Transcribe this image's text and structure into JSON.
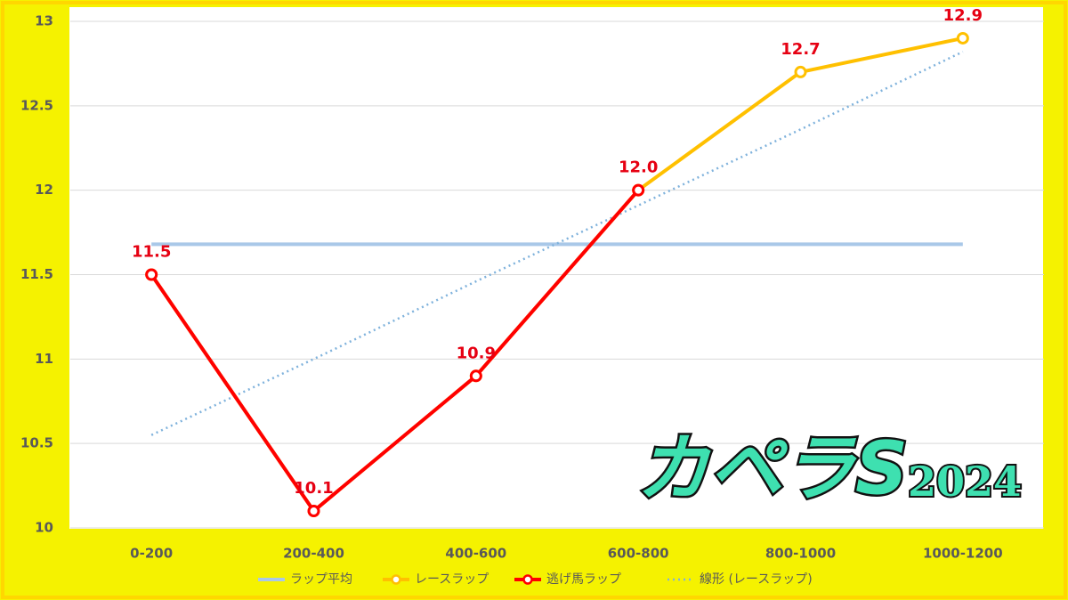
{
  "chart_data": {
    "type": "line",
    "categories": [
      "0-200",
      "200-400",
      "400-600",
      "600-800",
      "800-1000",
      "1000-1200"
    ],
    "ylim": [
      10,
      13
    ],
    "yticks": [
      10,
      10.5,
      11,
      11.5,
      12,
      12.5,
      13
    ],
    "grid": true,
    "legend": "bottom",
    "annotations": [
      "カペラS",
      "2024"
    ],
    "series": [
      {
        "name": "ラップ平均",
        "color": "#a9c8e8",
        "markers": false,
        "dash": "solid",
        "values": [
          11.68,
          11.68,
          11.68,
          11.68,
          11.68,
          11.68
        ]
      },
      {
        "name": "レースラップ",
        "color": "#ffc000",
        "markers": true,
        "dash": "solid",
        "values": [
          11.5,
          10.1,
          10.9,
          12.0,
          12.7,
          12.9
        ],
        "value_labels": [
          "11.5",
          "10.1",
          "10.9",
          "12.0",
          "12.7",
          "12.9"
        ]
      },
      {
        "name": "逃げ馬ラップ",
        "color": "#ff0000",
        "markers": true,
        "dash": "solid",
        "values": [
          11.5,
          10.1,
          10.9,
          12.0,
          null,
          null
        ]
      },
      {
        "name": "線形 (レースラップ)",
        "color": "#7fb2dc",
        "markers": false,
        "dash": "dotted",
        "values": [
          10.55,
          11.0,
          11.46,
          11.91,
          12.36,
          12.82
        ]
      }
    ]
  }
}
